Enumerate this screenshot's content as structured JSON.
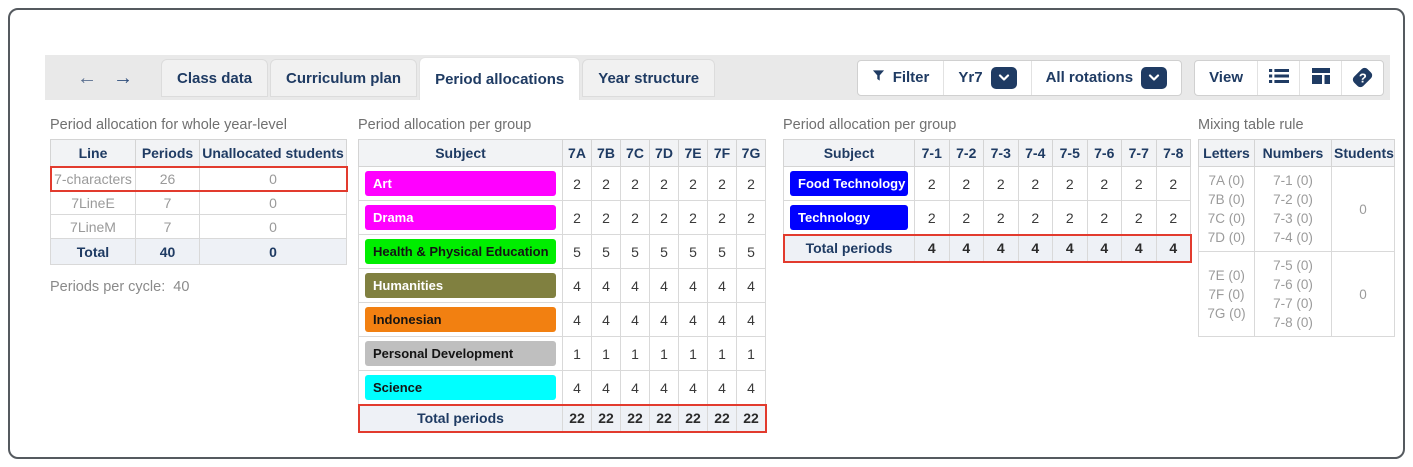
{
  "icons": {
    "back": "←",
    "forward": "→",
    "help_glyph": "?"
  },
  "toolbar": {
    "tabs": [
      {
        "label": "Class data",
        "active": false
      },
      {
        "label": "Curriculum plan",
        "active": false
      },
      {
        "label": "Period allocations",
        "active": true
      },
      {
        "label": "Year structure",
        "active": false
      }
    ],
    "filter_label": "Filter",
    "year_filter_value": "Yr7",
    "rotation_filter_value": "All rotations",
    "view_label": "View"
  },
  "colors": {
    "accent_navy": "#1f3b63",
    "highlight_red": "#e23b2e"
  },
  "year_level_table": {
    "title": "Period allocation for whole year-level",
    "headers": [
      "Line",
      "Periods",
      "Unallocated students"
    ],
    "rows": [
      {
        "line": "7-characters",
        "periods": "26",
        "unallocated": "0",
        "highlighted": true
      },
      {
        "line": "7LineE",
        "periods": "7",
        "unallocated": "0",
        "highlighted": false
      },
      {
        "line": "7LineM",
        "periods": "7",
        "unallocated": "0",
        "highlighted": false
      }
    ],
    "total_row": {
      "label": "Total",
      "periods": "40",
      "unallocated": "0"
    },
    "periods_per_cycle_label": "Periods per cycle:",
    "periods_per_cycle_value": "40"
  },
  "group_table_letters": {
    "title": "Period allocation per group",
    "subject_header": "Subject",
    "group_headers": [
      "7A",
      "7B",
      "7C",
      "7D",
      "7E",
      "7F",
      "7G"
    ],
    "rows": [
      {
        "subject": "Art",
        "bg": "#ff00ff",
        "fg": "#ffffff",
        "values": [
          "2",
          "2",
          "2",
          "2",
          "2",
          "2",
          "2"
        ]
      },
      {
        "subject": "Drama",
        "bg": "#ff00ff",
        "fg": "#ffffff",
        "values": [
          "2",
          "2",
          "2",
          "2",
          "2",
          "2",
          "2"
        ]
      },
      {
        "subject": "Health & Physical Education",
        "bg": "#00ee00",
        "fg": "#141414",
        "values": [
          "5",
          "5",
          "5",
          "5",
          "5",
          "5",
          "5"
        ]
      },
      {
        "subject": "Humanities",
        "bg": "#808040",
        "fg": "#ffffff",
        "values": [
          "4",
          "4",
          "4",
          "4",
          "4",
          "4",
          "4"
        ]
      },
      {
        "subject": "Indonesian",
        "bg": "#f28011",
        "fg": "#141414",
        "values": [
          "4",
          "4",
          "4",
          "4",
          "4",
          "4",
          "4"
        ]
      },
      {
        "subject": "Personal Development",
        "bg": "#bfbfbf",
        "fg": "#141414",
        "values": [
          "1",
          "1",
          "1",
          "1",
          "1",
          "1",
          "1"
        ]
      },
      {
        "subject": "Science",
        "bg": "#00ffff",
        "fg": "#141414",
        "values": [
          "4",
          "4",
          "4",
          "4",
          "4",
          "4",
          "4"
        ]
      }
    ],
    "total_label": "Total periods",
    "total_values": [
      "22",
      "22",
      "22",
      "22",
      "22",
      "22",
      "22"
    ],
    "total_highlighted": true
  },
  "group_table_numbers": {
    "title": "Period allocation per group",
    "subject_header": "Subject",
    "group_headers": [
      "7-1",
      "7-2",
      "7-3",
      "7-4",
      "7-5",
      "7-6",
      "7-7",
      "7-8"
    ],
    "rows": [
      {
        "subject": "Food Technology",
        "bg": "#0000ff",
        "fg": "#ffffff",
        "values": [
          "2",
          "2",
          "2",
          "2",
          "2",
          "2",
          "2",
          "2"
        ]
      },
      {
        "subject": "Technology",
        "bg": "#0000ff",
        "fg": "#ffffff",
        "values": [
          "2",
          "2",
          "2",
          "2",
          "2",
          "2",
          "2",
          "2"
        ]
      }
    ],
    "total_label": "Total periods",
    "total_values": [
      "4",
      "4",
      "4",
      "4",
      "4",
      "4",
      "4",
      "4"
    ],
    "total_highlighted": true
  },
  "mixing_table": {
    "title": "Mixing table rule",
    "headers": [
      "Letters",
      "Numbers",
      "Students"
    ],
    "groups": [
      {
        "letters": [
          "7A (0)",
          "7B (0)",
          "7C (0)",
          "7D (0)"
        ],
        "numbers": [
          "7-1 (0)",
          "7-2 (0)",
          "7-3 (0)",
          "7-4 (0)"
        ],
        "students": "0"
      },
      {
        "letters": [
          "7E (0)",
          "7F (0)",
          "7G (0)"
        ],
        "numbers": [
          "7-5 (0)",
          "7-6 (0)",
          "7-7 (0)",
          "7-8 (0)"
        ],
        "students": "0"
      }
    ]
  }
}
